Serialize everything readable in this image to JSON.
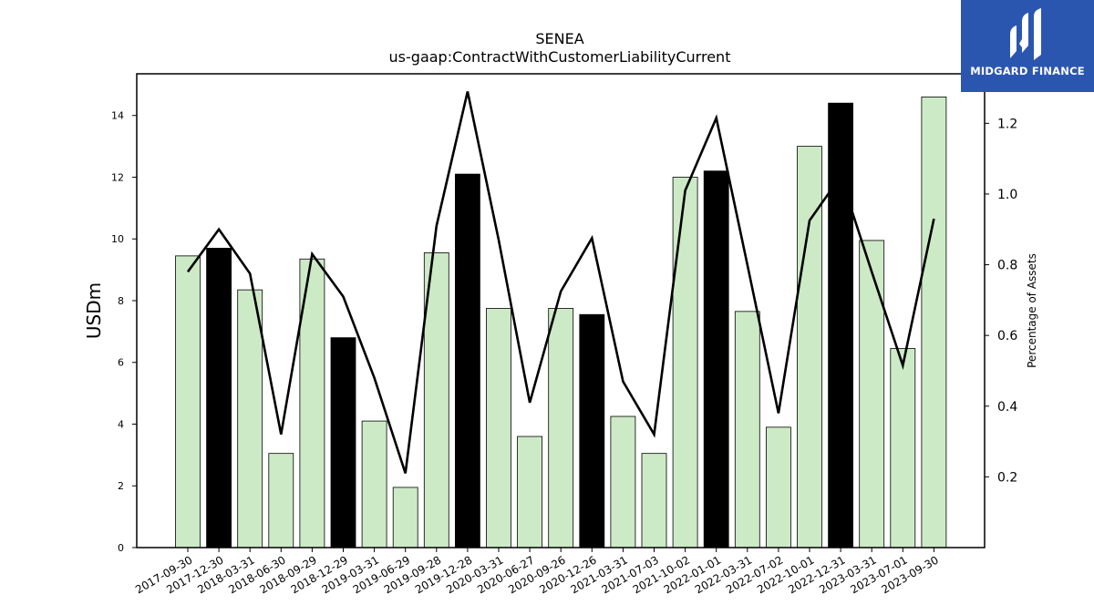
{
  "chart_data": {
    "type": "bar",
    "title": "SENEA",
    "subtitle": "us-gaap:ContractWithCustomerLiabilityCurrent",
    "ylabel": "USDm",
    "y2label": "Percentage of Assets",
    "ylim": [
      0,
      15.35
    ],
    "y2lim": [
      0.0,
      1.34
    ],
    "yticks": [
      "0",
      "2",
      "4",
      "6",
      "8",
      "10",
      "12",
      "14"
    ],
    "y2ticks": [
      "0.2",
      "0.4",
      "0.6",
      "0.8",
      "1.0",
      "1.2"
    ],
    "categories": [
      "2017-09-30",
      "2017-12-30",
      "2018-03-31",
      "2018-06-30",
      "2018-09-29",
      "2018-12-29",
      "2019-03-31",
      "2019-06-29",
      "2019-09-28",
      "2019-12-28",
      "2020-03-31",
      "2020-06-27",
      "2020-09-26",
      "2020-12-26",
      "2021-03-31",
      "2021-07-03",
      "2021-10-02",
      "2022-01-01",
      "2022-03-31",
      "2022-07-02",
      "2022-10-01",
      "2022-12-31",
      "2023-03-31",
      "2023-07-01",
      "2023-09-30"
    ],
    "series": [
      {
        "type": "bar",
        "values": [
          9.45,
          9.7,
          8.35,
          3.05,
          9.35,
          6.8,
          4.1,
          1.95,
          9.55,
          12.1,
          7.75,
          3.6,
          7.75,
          7.55,
          4.25,
          3.05,
          12.0,
          12.2,
          7.65,
          3.9,
          13.0,
          14.4,
          9.95,
          6.45,
          14.6
        ],
        "highlight": [
          false,
          true,
          false,
          false,
          false,
          true,
          false,
          false,
          false,
          true,
          false,
          false,
          false,
          true,
          false,
          false,
          false,
          true,
          false,
          false,
          false,
          true,
          false,
          false,
          false
        ],
        "color": "#cdeac6",
        "highlight_color": "#000000"
      },
      {
        "type": "line",
        "axis": "right",
        "values": [
          0.78,
          0.9,
          0.775,
          0.32,
          0.83,
          0.71,
          0.48,
          0.21,
          0.91,
          1.29,
          0.87,
          0.41,
          0.725,
          0.875,
          0.47,
          0.32,
          1.01,
          1.215,
          0.8,
          0.38,
          0.925,
          1.05,
          0.78,
          0.515,
          0.93
        ],
        "color": "#000000"
      }
    ],
    "grid": false,
    "legend": "none"
  },
  "logo": {
    "text": "MIDGARD FINANCE",
    "color": "#2b56b0"
  }
}
